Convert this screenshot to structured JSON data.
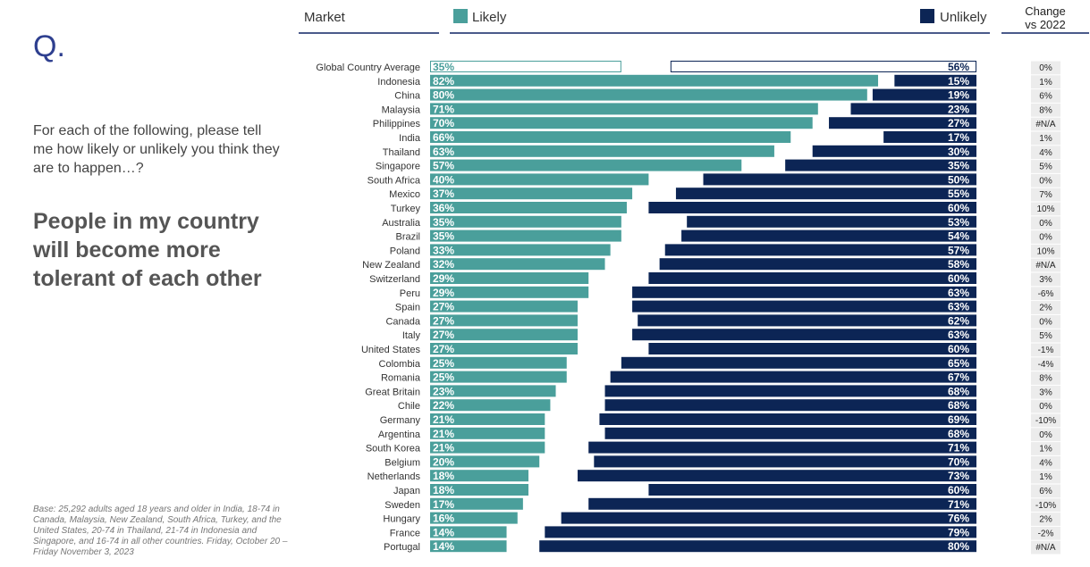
{
  "slide": {
    "q_mark": "Q.",
    "question": "For each of the following, please tell me how likely or unlikely you think they are to happen…?",
    "statement": "People in my country will become more tolerant of each other",
    "footnote": "Base: 25,292 adults aged 18 years and older in India, 18-74 in Canada, Malaysia, New Zealand, South Africa, Turkey, and the United States, 20-74 in Thailand, 21-74 in Indonesia and Singapore, and 16-74 in all other countries. Friday, October 20 – Friday November 3, 2023"
  },
  "header": {
    "market": "Market",
    "likely": "Likely",
    "unlikely": "Unlikely",
    "change_line1": "Change",
    "change_line2": "vs 2022"
  },
  "colors": {
    "likely": "#4a9f9b",
    "unlikely": "#0c2555",
    "change_bg": "#ececec"
  },
  "chart_data": {
    "type": "bar",
    "orientation": "horizontal",
    "categories": [
      "Global Country Average",
      "Indonesia",
      "China",
      "Malaysia",
      "Philippines",
      "India",
      "Thailand",
      "Singapore",
      "South Africa",
      "Mexico",
      "Turkey",
      "Australia",
      "Brazil",
      "Poland",
      "New Zealand",
      "Switzerland",
      "Peru",
      "Spain",
      "Canada",
      "Italy",
      "United States",
      "Colombia",
      "Romania",
      "Great Britain",
      "Chile",
      "Germany",
      "Argentina",
      "South Korea",
      "Belgium",
      "Netherlands",
      "Japan",
      "Sweden",
      "Hungary",
      "France",
      "Portugal"
    ],
    "series": [
      {
        "name": "Likely",
        "values": [
          35,
          82,
          80,
          71,
          70,
          66,
          63,
          57,
          40,
          37,
          36,
          35,
          35,
          33,
          32,
          29,
          29,
          27,
          27,
          27,
          27,
          25,
          25,
          23,
          22,
          21,
          21,
          21,
          20,
          18,
          18,
          17,
          16,
          14,
          14
        ]
      },
      {
        "name": "Unlikely",
        "values": [
          56,
          15,
          19,
          23,
          27,
          17,
          30,
          35,
          50,
          55,
          60,
          53,
          54,
          57,
          58,
          60,
          63,
          63,
          62,
          63,
          60,
          65,
          67,
          68,
          68,
          69,
          68,
          71,
          70,
          73,
          60,
          71,
          76,
          79,
          80
        ]
      }
    ],
    "change_vs_2022": [
      "0%",
      "1%",
      "6%",
      "8%",
      "#N/A",
      "1%",
      "4%",
      "5%",
      "0%",
      "7%",
      "10%",
      "0%",
      "0%",
      "10%",
      "#N/A",
      "3%",
      "-6%",
      "2%",
      "0%",
      "5%",
      "-1%",
      "-4%",
      "8%",
      "3%",
      "0%",
      "-10%",
      "0%",
      "1%",
      "4%",
      "1%",
      "6%",
      "-10%",
      "2%",
      "-2%",
      "#N/A"
    ]
  }
}
